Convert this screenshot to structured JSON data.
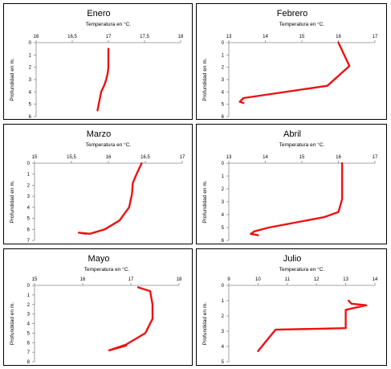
{
  "chart_data": [
    {
      "type": "line",
      "title": "Enero",
      "xlabel": "Temperatura en °C.",
      "ylabel": "Profundidad en m.",
      "x_ticks": [
        "16",
        "16,5",
        "17",
        "17,5",
        "18"
      ],
      "xlim": [
        16,
        18
      ],
      "y_ticks": [
        "0",
        "1",
        "2",
        "3",
        "4",
        "5",
        "6"
      ],
      "ylim": [
        0,
        6
      ],
      "series": [
        {
          "x": [
            17.0,
            17.0,
            17.0,
            17.0,
            16.99,
            16.97,
            16.94,
            16.9,
            16.85
          ],
          "y": [
            0.5,
            1.0,
            1.5,
            2.0,
            2.5,
            3.0,
            3.5,
            4.0,
            5.5
          ]
        }
      ]
    },
    {
      "type": "line",
      "title": "Febrero",
      "xlabel": "Temperatura en °C.",
      "ylabel": "Profundidad en m.",
      "x_ticks": [
        "13",
        "14",
        "15",
        "16",
        "17"
      ],
      "xlim": [
        13,
        17
      ],
      "y_ticks": [
        "0",
        "1",
        "2",
        "3",
        "4",
        "5",
        "6"
      ],
      "ylim": [
        0,
        6
      ],
      "series": [
        {
          "x": [
            16.0,
            16.3,
            15.7,
            13.4,
            13.3,
            13.4
          ],
          "y": [
            0.0,
            1.9,
            3.5,
            4.5,
            4.8,
            4.9
          ]
        }
      ]
    },
    {
      "type": "line",
      "title": "Marzo",
      "xlabel": "Temperatura en °C.",
      "ylabel": "Profundidad en m.",
      "x_ticks": [
        "15",
        "15,5",
        "16",
        "16,5",
        "17"
      ],
      "xlim": [
        15,
        17
      ],
      "y_ticks": [
        "0",
        "1",
        "2",
        "3",
        "4",
        "5",
        "6",
        "7"
      ],
      "ylim": [
        0,
        7
      ],
      "series": [
        {
          "x": [
            16.45,
            16.38,
            16.33,
            16.32,
            16.28,
            16.15,
            15.95,
            15.75,
            15.6,
            15.7
          ],
          "y": [
            0.0,
            1.0,
            1.8,
            2.8,
            4.0,
            5.2,
            6.0,
            6.4,
            6.3,
            6.4
          ]
        }
      ]
    },
    {
      "type": "line",
      "title": "Abril",
      "xlabel": "Temperatura en °C.",
      "ylabel": "Profundidad en m.",
      "x_ticks": [
        "13",
        "14",
        "15",
        "16",
        "17"
      ],
      "xlim": [
        13,
        17
      ],
      "y_ticks": [
        "0",
        "1",
        "2",
        "3",
        "4",
        "5",
        "6"
      ],
      "ylim": [
        0,
        6
      ],
      "series": [
        {
          "x": [
            16.1,
            16.1,
            16.1,
            16.1,
            16.0,
            15.6,
            14.1,
            13.7,
            13.6,
            13.8
          ],
          "y": [
            0.0,
            1.0,
            2.0,
            2.8,
            3.8,
            4.2,
            5.0,
            5.3,
            5.5,
            5.6
          ]
        }
      ]
    },
    {
      "type": "line",
      "title": "Mayo",
      "xlabel": "Temperatura en °C.",
      "ylabel": "Profundidad en m.",
      "x_ticks": [
        "15",
        "16",
        "17",
        "18"
      ],
      "xlim": [
        15,
        18
      ],
      "y_ticks": [
        "0",
        "1",
        "2",
        "3",
        "4",
        "5",
        "6",
        "7",
        "8"
      ],
      "ylim": [
        0,
        8
      ],
      "series": [
        {
          "x": [
            17.15,
            17.4,
            17.45,
            17.45,
            17.3,
            16.9,
            16.55,
            16.9
          ],
          "y": [
            0.2,
            0.6,
            2.0,
            3.5,
            5.0,
            6.2,
            6.8,
            6.3
          ]
        }
      ]
    },
    {
      "type": "line",
      "title": "Julio",
      "xlabel": "Temperatura en °C.",
      "ylabel": "Profundidad en m.",
      "x_ticks": [
        "9",
        "10",
        "11",
        "12",
        "13",
        "14"
      ],
      "xlim": [
        9,
        14
      ],
      "y_ticks": [
        "0",
        "1",
        "2",
        "3",
        "4",
        "5"
      ],
      "ylim": [
        0,
        5
      ],
      "series": [
        {
          "x": [
            13.1,
            13.2,
            13.7,
            13.0,
            13.0,
            10.6,
            10.3,
            10.0
          ],
          "y": [
            1.0,
            1.2,
            1.3,
            1.6,
            2.8,
            2.9,
            3.6,
            4.3
          ]
        }
      ]
    }
  ],
  "colors": {
    "line": "#ee1111",
    "frame": "#000000",
    "axis": "#888888",
    "tick_text": "#000000"
  }
}
